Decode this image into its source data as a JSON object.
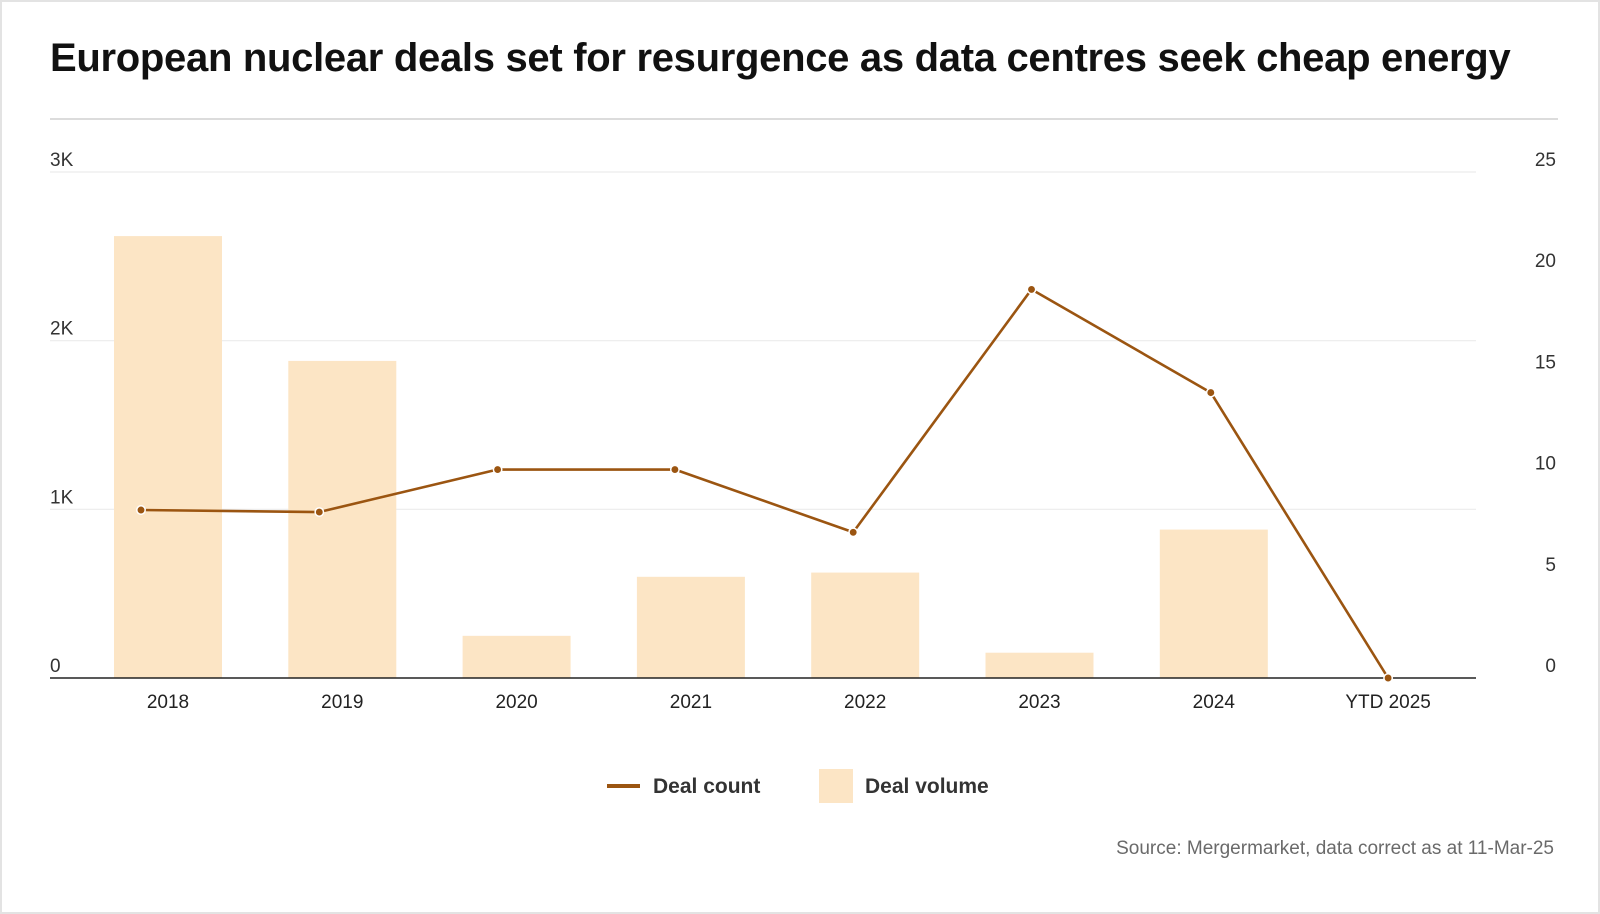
{
  "chart_data": {
    "type": "bar",
    "title": "European nuclear deals set for resurgence as data centres seek cheap energy",
    "categories": [
      "2018",
      "2019",
      "2020",
      "2021",
      "2022",
      "2023",
      "2024",
      "YTD 2025"
    ],
    "series": [
      {
        "name": "Deal volume",
        "type": "bar",
        "axis": "left",
        "color": "#fce5c5",
        "values": [
          2620,
          1880,
          250,
          600,
          625,
          150,
          880,
          0
        ]
      },
      {
        "name": "Deal count",
        "type": "line",
        "axis": "right",
        "color": "#9b5511",
        "values": [
          8.3,
          8.2,
          10.3,
          10.3,
          7.2,
          19.2,
          14.1,
          0
        ]
      }
    ],
    "left_axis": {
      "ylim": [
        0,
        3000
      ],
      "ticks": [
        0,
        1000,
        2000,
        3000
      ],
      "tick_labels": [
        "0",
        "1K",
        "2K",
        "3K"
      ]
    },
    "right_axis": {
      "ylim": [
        0,
        25
      ],
      "ticks": [
        0,
        5,
        10,
        15,
        20,
        25
      ],
      "tick_labels": [
        "0",
        "5",
        "10",
        "15",
        "20",
        "25"
      ]
    },
    "grid": true,
    "legend_position": "bottom-center"
  },
  "source_text": "Source: Mergermarket, data correct as at 11-Mar-25"
}
